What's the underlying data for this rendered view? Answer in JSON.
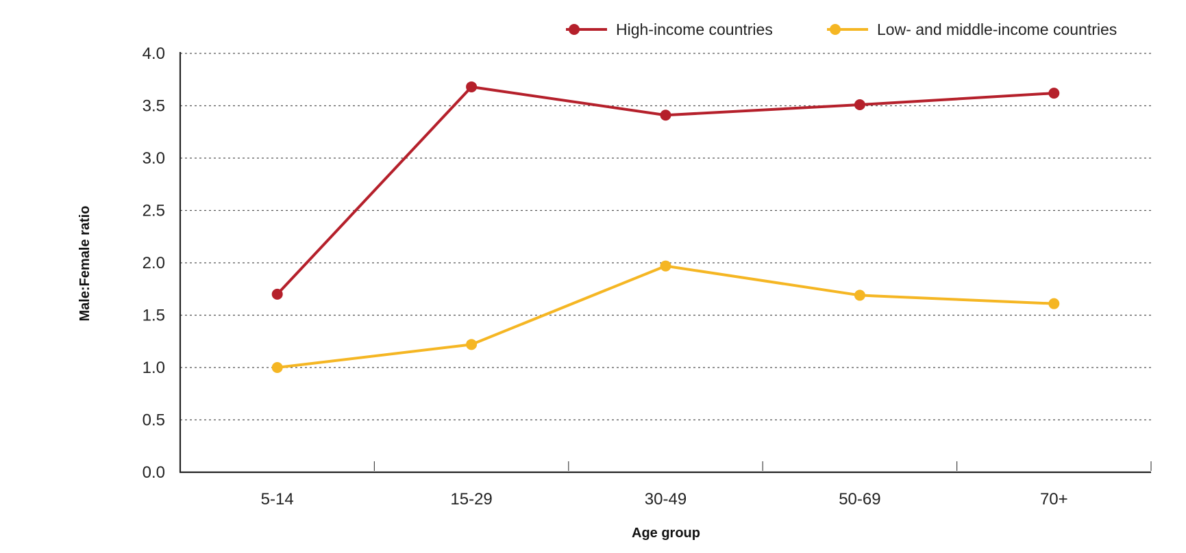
{
  "chart_data": {
    "type": "line",
    "title": "",
    "xlabel": "Age group",
    "ylabel": "Male:Female ratio",
    "categories": [
      "5-14",
      "15-29",
      "30-49",
      "50-69",
      "70+"
    ],
    "ylim": [
      0,
      4
    ],
    "yticks": [
      "0.0",
      "0.5",
      "1.0",
      "1.5",
      "2.0",
      "2.5",
      "3.0",
      "3.5",
      "4.0"
    ],
    "grid": true,
    "legend_position": "top-right",
    "series": [
      {
        "name": "High-income countries",
        "color": "#b5202b",
        "values": [
          1.7,
          3.68,
          3.41,
          3.51,
          3.62
        ]
      },
      {
        "name": "Low- and middle-income countries",
        "color": "#f5b623",
        "values": [
          1.0,
          1.22,
          1.97,
          1.69,
          1.61
        ]
      }
    ]
  }
}
